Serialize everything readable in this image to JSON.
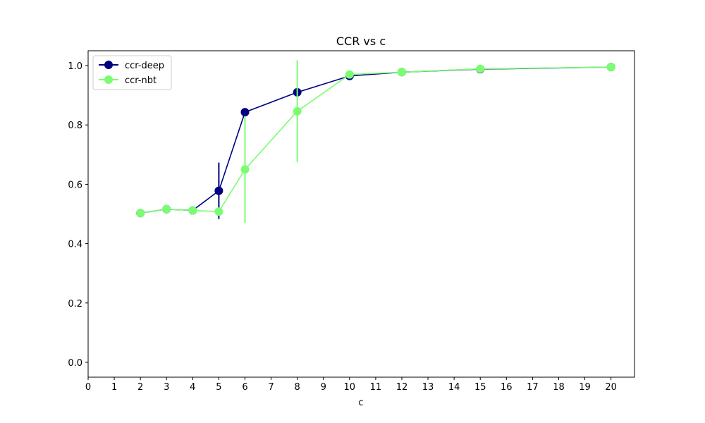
{
  "chart_data": {
    "type": "line",
    "title": "CCR vs c",
    "xlabel": "c",
    "ylabel": "",
    "xlim": [
      0,
      20.9
    ],
    "ylim": [
      -0.05,
      1.05
    ],
    "xticks": [
      0,
      1,
      2,
      3,
      4,
      5,
      6,
      7,
      8,
      9,
      10,
      11,
      12,
      13,
      14,
      15,
      16,
      17,
      18,
      19,
      20
    ],
    "yticks": [
      0.0,
      0.2,
      0.4,
      0.6,
      0.8,
      1.0
    ],
    "ytick_labels": [
      "0.0",
      "0.2",
      "0.4",
      "0.6",
      "0.8",
      "1.0"
    ],
    "grid": false,
    "legend_position": "top-left",
    "series": [
      {
        "name": "ccr-deep",
        "color": "#000080",
        "x": [
          2,
          3,
          4,
          5,
          6,
          8,
          10,
          12,
          15,
          20
        ],
        "y": [
          0.503,
          0.516,
          0.512,
          0.578,
          0.843,
          0.91,
          0.965,
          0.978,
          0.988,
          0.995
        ],
        "yerr": [
          0.0,
          0.0,
          0.0,
          0.095,
          0.012,
          0.0,
          0.0,
          0.0,
          0.0,
          0.0
        ]
      },
      {
        "name": "ccr-nbt",
        "color": "#7cfc72",
        "x": [
          2,
          3,
          4,
          5,
          6,
          8,
          10,
          12,
          15,
          20
        ],
        "y": [
          0.503,
          0.516,
          0.512,
          0.508,
          0.65,
          0.846,
          0.97,
          0.978,
          0.989,
          0.995
        ],
        "yerr": [
          0.0,
          0.0,
          0.0,
          0.0,
          0.18,
          0.172,
          0.0,
          0.0,
          0.0,
          0.0
        ]
      }
    ]
  }
}
